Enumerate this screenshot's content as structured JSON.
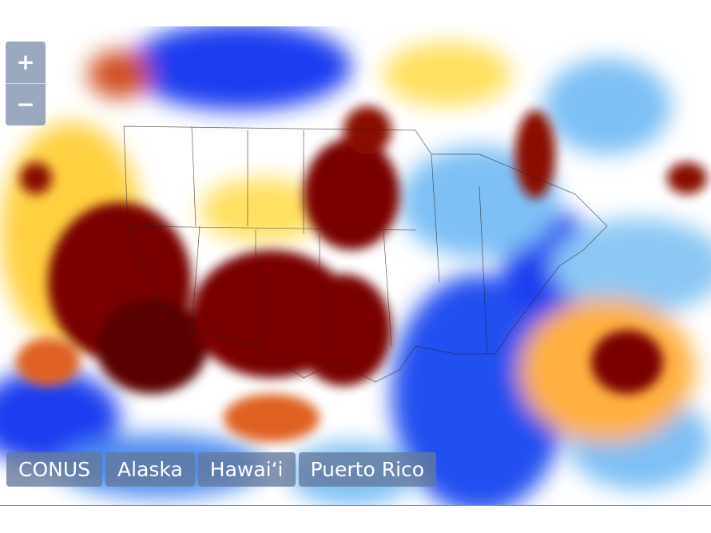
{
  "zoom": {
    "in": "+",
    "out": "−"
  },
  "regions": [
    "CONUS",
    "Alaska",
    "Hawaiʻi",
    "Puerto Rico"
  ]
}
